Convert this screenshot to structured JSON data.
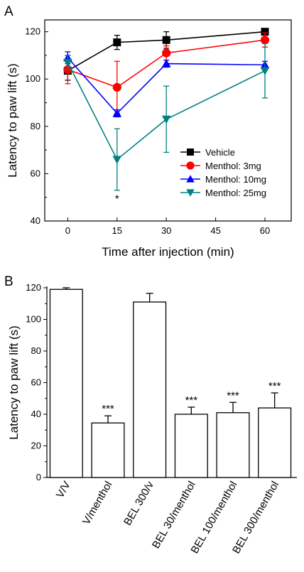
{
  "chart_data": [
    {
      "type": "line",
      "panel_label": "A",
      "xlabel": "Time after injection (min)",
      "ylabel": "Latency to paw lift (s)",
      "xlim": [
        -7,
        68
      ],
      "ylim": [
        40,
        125
      ],
      "xticks": [
        0,
        15,
        30,
        45,
        60
      ],
      "yticks": [
        40,
        60,
        80,
        100,
        120
      ],
      "legend_position": "lower-right",
      "grid": false,
      "x": [
        0,
        15,
        30,
        60
      ],
      "series": [
        {
          "name": "Vehicle",
          "color": "#000000",
          "marker": "square",
          "values": [
            103.5,
            115.5,
            116.5,
            120
          ],
          "errors": [
            4,
            3,
            3.5,
            1
          ]
        },
        {
          "name": "Menthol: 3mg",
          "color": "#ff0000",
          "marker": "circle",
          "values": [
            104,
            96.5,
            111,
            116.5
          ],
          "errors": [
            6,
            11,
            3,
            3
          ]
        },
        {
          "name": "Menthol: 10mg",
          "color": "#0000ff",
          "marker": "triangle-up",
          "values": [
            109,
            85.5,
            106.5,
            106
          ],
          "errors": [
            2.5,
            1.5,
            1.5,
            1.5
          ]
        },
        {
          "name": "Menthol: 25mg",
          "color": "#008080",
          "marker": "triangle-down",
          "values": [
            107,
            66,
            83,
            103.5
          ],
          "errors": [
            3,
            13,
            14,
            11.5
          ]
        }
      ],
      "annotations": [
        {
          "text": "*",
          "x": 15,
          "y": 51.5
        }
      ]
    },
    {
      "type": "bar",
      "panel_label": "B",
      "xlabel": "",
      "ylabel": "Latency to paw lift (s)",
      "ylim": [
        0,
        120
      ],
      "yticks": [
        0,
        20,
        40,
        60,
        80,
        100,
        120
      ],
      "grid": false,
      "categories": [
        "V/V",
        "V/menthol",
        "BEL 300/v",
        "BEL 30/menthol",
        "BEL 100/menthol",
        "BEL 300/menthol"
      ],
      "values": [
        119,
        34.5,
        111,
        40,
        41,
        44
      ],
      "errors": [
        1,
        4.5,
        5.5,
        4.5,
        6.5,
        9.5
      ],
      "significance": [
        "",
        "***",
        "",
        "***",
        "***",
        "***"
      ],
      "bar_fill": "#ffffff",
      "bar_stroke": "#000000"
    }
  ]
}
